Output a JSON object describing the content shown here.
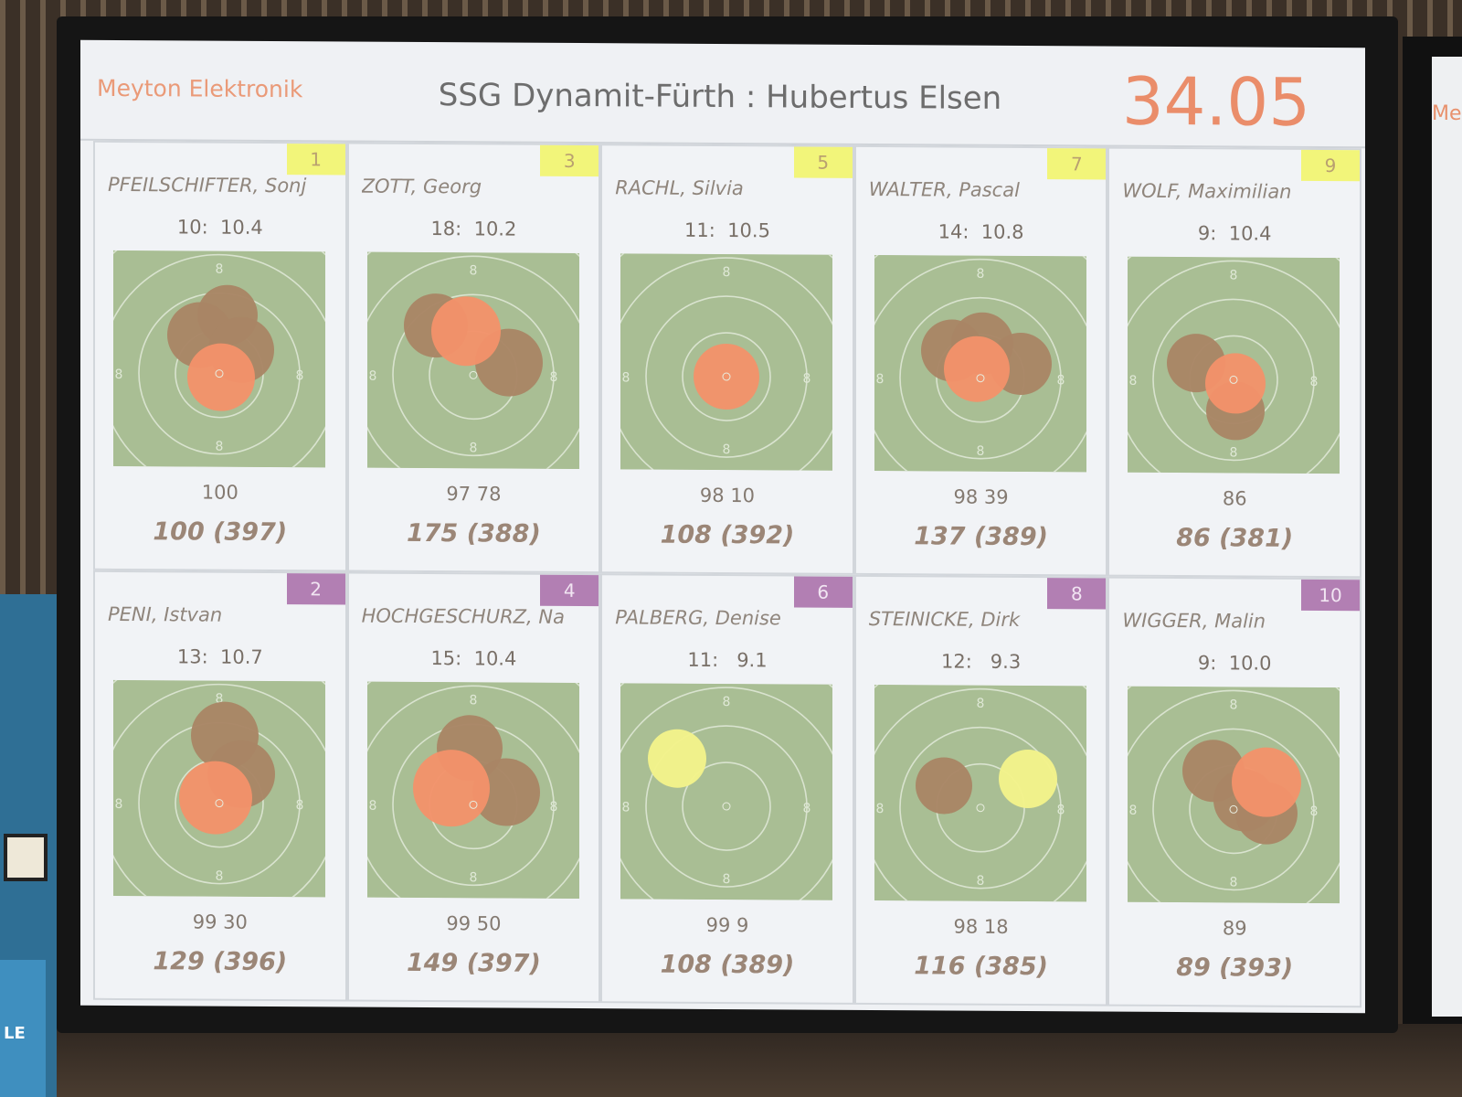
{
  "header": {
    "brand": "Meyton Elektronik",
    "match": "SSG Dynamit-Fürth : Hubertus Elsen",
    "clock": "34.05"
  },
  "colors": {
    "target_bg": "#a9be94",
    "shot_current": "#f2926a",
    "shot_previous": "#a98565",
    "shot_yellow": "#f2f28a",
    "lane_odd": "#f2f57a",
    "lane_even": "#b27fb3",
    "brand_accent": "#ea9a78"
  },
  "side_screen": {
    "text": "Me"
  },
  "side_sign": {
    "text": "LE"
  },
  "shooters": [
    {
      "lane": "1",
      "name": "PFEILSCHIFTER, Sonj",
      "shot": "10:  10.4",
      "series": "100",
      "total": "100 (397)"
    },
    {
      "lane": "3",
      "name": "ZOTT, Georg",
      "shot": "18:  10.2",
      "series": "97 78",
      "total": "175 (388)"
    },
    {
      "lane": "5",
      "name": "RACHL, Silvia",
      "shot": "11:  10.5",
      "series": "98 10",
      "total": "108 (392)"
    },
    {
      "lane": "7",
      "name": "WALTER, Pascal",
      "shot": "14:  10.8",
      "series": "98 39",
      "total": "137 (389)"
    },
    {
      "lane": "9",
      "name": "WOLF, Maximilian",
      "shot": "9:  10.4",
      "series": "86",
      "total": "86 (381)"
    },
    {
      "lane": "2",
      "name": "PENI, Istvan",
      "shot": "13:  10.7",
      "series": "99 30",
      "total": "129 (396)"
    },
    {
      "lane": "4",
      "name": "HOCHGESCHURZ, Na",
      "shot": "15:  10.4",
      "series": "99 50",
      "total": "149 (397)"
    },
    {
      "lane": "6",
      "name": "PALBERG, Denise",
      "shot": "11:   9.1",
      "series": "99 9",
      "total": "108 (389)"
    },
    {
      "lane": "8",
      "name": "STEINICKE, Dirk",
      "shot": "12:   9.3",
      "series": "98 18",
      "total": "116 (385)"
    },
    {
      "lane": "10",
      "name": "WIGGER, Malin",
      "shot": "9:  10.0",
      "series": "89",
      "total": "89 (393)"
    }
  ]
}
